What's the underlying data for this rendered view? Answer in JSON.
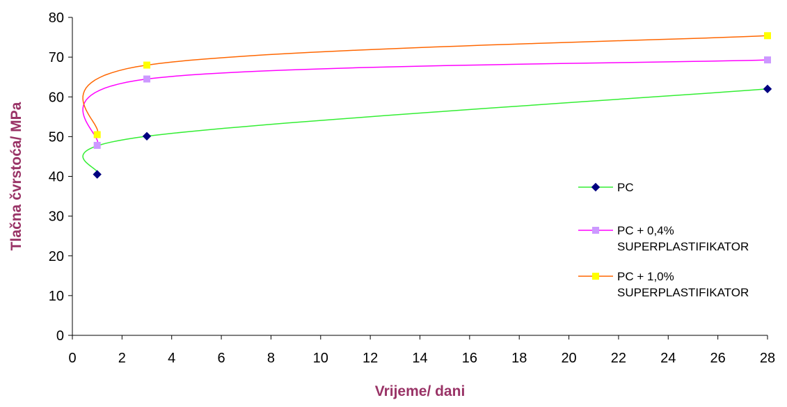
{
  "chart_data": {
    "type": "line",
    "title": "",
    "xlabel": "Vrijeme/ dani",
    "ylabel": "Tlačna čvrstoća/ MPa",
    "xlim": [
      0,
      28
    ],
    "ylim": [
      0,
      80
    ],
    "xticks": [
      0,
      2,
      4,
      6,
      8,
      10,
      12,
      14,
      16,
      18,
      20,
      22,
      24,
      26,
      28
    ],
    "yticks": [
      0,
      10,
      20,
      30,
      40,
      50,
      60,
      70,
      80
    ],
    "x": [
      1,
      3,
      28
    ],
    "grid": false,
    "legend_position": "right",
    "series": [
      {
        "name": "PC",
        "values": [
          40.5,
          50.1,
          62.0
        ],
        "line_color": "#33ee33",
        "marker_color": "#000080",
        "marker": "diamond"
      },
      {
        "name": "PC + 0,4% SUPERPLASTIFIKATOR",
        "legend_lines": [
          "PC + 0,4%",
          "SUPERPLASTIFIKATOR"
        ],
        "values": [
          47.8,
          64.5,
          69.3
        ],
        "line_color": "#ff00ff",
        "marker_color": "#cc99ff",
        "marker": "square"
      },
      {
        "name": "PC + 1,0% SUPERPLASTIFIKATOR",
        "legend_lines": [
          "PC + 1,0%",
          "SUPERPLASTIFIKATOR"
        ],
        "values": [
          50.5,
          68.0,
          75.4
        ],
        "line_color": "#ff6600",
        "marker_color": "#ffff00",
        "marker": "square"
      }
    ]
  }
}
